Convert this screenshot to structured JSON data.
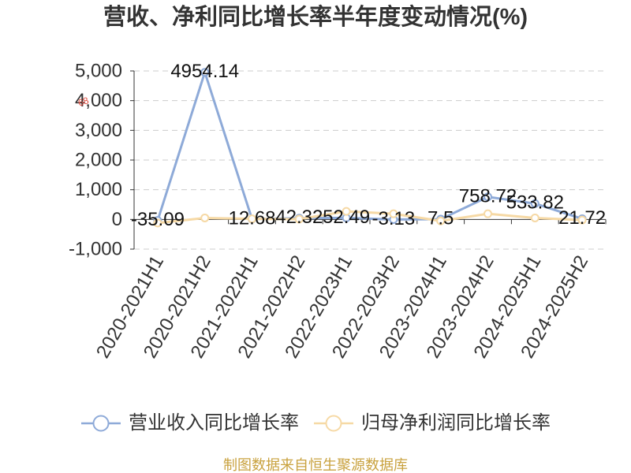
{
  "annotation": "68",
  "footer": "制图数据来自恒生聚源数据库",
  "colors": {
    "text": "#333333",
    "grid": "#cccccc",
    "axis": "#333333",
    "footer": "#c9a23f",
    "annotation": "#e04b3f"
  },
  "chart_data": {
    "type": "line",
    "title": "营收、净利同比增长率半年度变动情况(%)",
    "categories": [
      "2020-2021H1",
      "2020-2021H2",
      "2021-2022H1",
      "2021-2022H2",
      "2022-2023H1",
      "2022-2023H2",
      "2023-2024H1",
      "2023-2024H2",
      "2024-2025H1",
      "2024-2025H2"
    ],
    "y_ticks": [
      "5,000",
      "4,000",
      "3,000",
      "2,000",
      "1,000",
      "0",
      "-1,000"
    ],
    "ylim": [
      -1000,
      5000
    ],
    "grid": true,
    "legend_position": "bottom",
    "series": [
      {
        "name": "营业收入同比增长率",
        "color": "#8eaad8",
        "show_labels": true,
        "values": [
          -35.09,
          4954.14,
          12.68,
          42.32,
          52.49,
          -3.13,
          7.5,
          758.72,
          533.82,
          21.72
        ]
      },
      {
        "name": "归母净利润同比增长率",
        "color": "#f6d9a5",
        "show_labels": false,
        "values": [
          -120,
          50,
          20,
          10,
          270,
          190,
          -50,
          190,
          50,
          -20
        ]
      }
    ]
  }
}
